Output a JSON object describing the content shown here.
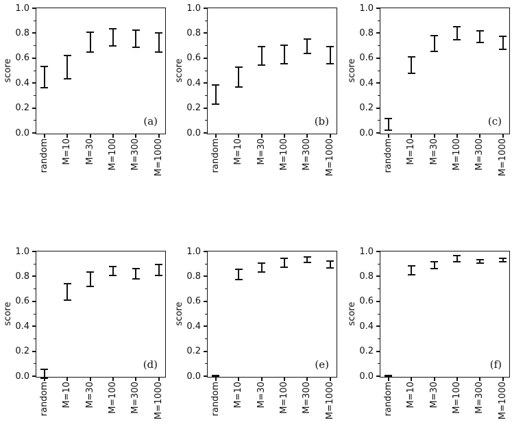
{
  "figure": {
    "background": "#ffffff",
    "ink_color": "#111111"
  },
  "chart_data": [
    {
      "type": "errorbar",
      "panel_label": "(a)",
      "ylabel": "score",
      "ylim": [
        0.0,
        1.0
      ],
      "ytick_labels": [
        "0.0",
        "0.2",
        "0.4",
        "0.6",
        "0.8",
        "1.0"
      ],
      "grid": false,
      "categories": [
        "random",
        "M=10",
        "M=30",
        "M=100",
        "M=300",
        "M=1000"
      ],
      "bars": [
        {
          "category": "random",
          "low": 0.36,
          "high": 0.535
        },
        {
          "category": "M=10",
          "low": 0.435,
          "high": 0.62
        },
        {
          "category": "M=30",
          "low": 0.65,
          "high": 0.805
        },
        {
          "category": "M=100",
          "low": 0.7,
          "high": 0.835
        },
        {
          "category": "M=300",
          "low": 0.685,
          "high": 0.825
        },
        {
          "category": "M=1000",
          "low": 0.65,
          "high": 0.8
        }
      ]
    },
    {
      "type": "errorbar",
      "panel_label": "(b)",
      "ylabel": "score",
      "ylim": [
        0.0,
        1.0
      ],
      "ytick_labels": [
        "0.0",
        "0.2",
        "0.4",
        "0.6",
        "0.8",
        "1.0"
      ],
      "grid": false,
      "categories": [
        "random",
        "M=10",
        "M=30",
        "M=100",
        "M=300",
        "M=1000"
      ],
      "bars": [
        {
          "category": "random",
          "low": 0.23,
          "high": 0.385
        },
        {
          "category": "M=10",
          "low": 0.37,
          "high": 0.53
        },
        {
          "category": "M=30",
          "low": 0.545,
          "high": 0.695
        },
        {
          "category": "M=100",
          "low": 0.555,
          "high": 0.705
        },
        {
          "category": "M=300",
          "low": 0.64,
          "high": 0.755
        },
        {
          "category": "M=1000",
          "low": 0.555,
          "high": 0.695
        }
      ]
    },
    {
      "type": "errorbar",
      "panel_label": "(c)",
      "ylabel": "score",
      "ylim": [
        0.0,
        1.0
      ],
      "ytick_labels": [
        "0.0",
        "0.2",
        "0.4",
        "0.6",
        "0.8",
        "1.0"
      ],
      "grid": false,
      "categories": [
        "random",
        "M=10",
        "M=30",
        "M=100",
        "M=300",
        "M=1000"
      ],
      "bars": [
        {
          "category": "random",
          "low": 0.02,
          "high": 0.115
        },
        {
          "category": "M=10",
          "low": 0.48,
          "high": 0.61
        },
        {
          "category": "M=30",
          "low": 0.655,
          "high": 0.78
        },
        {
          "category": "M=100",
          "low": 0.745,
          "high": 0.85
        },
        {
          "category": "M=300",
          "low": 0.725,
          "high": 0.82
        },
        {
          "category": "M=1000",
          "low": 0.67,
          "high": 0.775
        }
      ]
    },
    {
      "type": "errorbar",
      "panel_label": "(d)",
      "ylabel": "score",
      "ylim": [
        0.0,
        1.0
      ],
      "ytick_labels": [
        "0.0",
        "0.2",
        "0.4",
        "0.6",
        "0.8",
        "1.0"
      ],
      "grid": false,
      "categories": [
        "random",
        "M=10",
        "M=30",
        "M=100",
        "M=300",
        "M=1000"
      ],
      "bars": [
        {
          "category": "random",
          "low": -0.015,
          "high": 0.055
        },
        {
          "category": "M=10",
          "low": 0.61,
          "high": 0.74
        },
        {
          "category": "M=30",
          "low": 0.72,
          "high": 0.835
        },
        {
          "category": "M=100",
          "low": 0.805,
          "high": 0.88
        },
        {
          "category": "M=300",
          "low": 0.78,
          "high": 0.865
        },
        {
          "category": "M=1000",
          "low": 0.81,
          "high": 0.895
        }
      ]
    },
    {
      "type": "errorbar",
      "panel_label": "(e)",
      "ylabel": "score",
      "ylim": [
        0.0,
        1.0
      ],
      "ytick_labels": [
        "0.0",
        "0.2",
        "0.4",
        "0.6",
        "0.8",
        "1.0"
      ],
      "grid": false,
      "categories": [
        "random",
        "M=10",
        "M=30",
        "M=100",
        "M=300",
        "M=1000"
      ],
      "bars": [
        {
          "category": "random",
          "low": -0.005,
          "high": 0.005
        },
        {
          "category": "M=10",
          "low": 0.775,
          "high": 0.855
        },
        {
          "category": "M=30",
          "low": 0.835,
          "high": 0.905
        },
        {
          "category": "M=100",
          "low": 0.875,
          "high": 0.945
        },
        {
          "category": "M=300",
          "low": 0.91,
          "high": 0.955
        },
        {
          "category": "M=1000",
          "low": 0.87,
          "high": 0.925
        }
      ]
    },
    {
      "type": "errorbar",
      "panel_label": "(f)",
      "ylabel": "score",
      "ylim": [
        0.0,
        1.0
      ],
      "ytick_labels": [
        "0.0",
        "0.2",
        "0.4",
        "0.6",
        "0.8",
        "1.0"
      ],
      "grid": false,
      "categories": [
        "random",
        "M=10",
        "M=30",
        "M=100",
        "M=300",
        "M=1000"
      ],
      "bars": [
        {
          "category": "random",
          "low": -0.005,
          "high": 0.005
        },
        {
          "category": "M=10",
          "low": 0.815,
          "high": 0.885
        },
        {
          "category": "M=30",
          "low": 0.865,
          "high": 0.915
        },
        {
          "category": "M=100",
          "low": 0.92,
          "high": 0.965
        },
        {
          "category": "M=300",
          "low": 0.905,
          "high": 0.935
        },
        {
          "category": "M=1000",
          "low": 0.915,
          "high": 0.945
        }
      ]
    }
  ]
}
